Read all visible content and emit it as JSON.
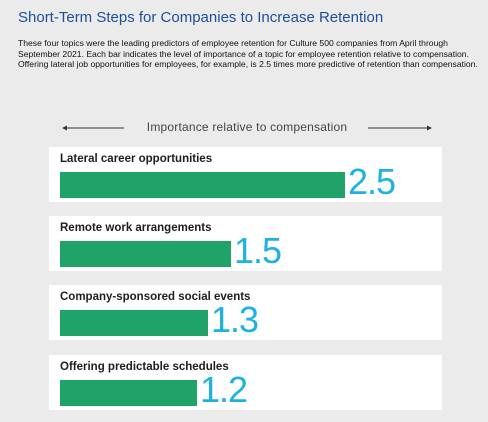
{
  "title": "Short-Term Steps for Companies to Increase Retention",
  "description": "These four topics were the leading predictors of employee retention for Culture 500 companies from April through September 2021. Each bar indicates the level of importance of a topic for employee retention relative to compensation. Offering lateral job opportunities for employees, for example, is 2.5 times more predictive of retention than compensation.",
  "colors": {
    "title": "#1b4f9c",
    "bar": "#1fa369",
    "value": "#1cb2e2",
    "background": "#ebebeb"
  },
  "chart_data": {
    "type": "bar",
    "orientation": "horizontal",
    "title": "Short-Term Steps for Companies to Increase Retention",
    "axis_label": "Importance relative to compensation",
    "categories": [
      "Lateral career opportunities",
      "Remote work arrangements",
      "Company-sponsored social events",
      "Offering predictable schedules"
    ],
    "values": [
      2.5,
      1.5,
      1.3,
      1.2
    ],
    "value_labels": [
      "2.5",
      "1.5",
      "1.3",
      "1.2"
    ],
    "xlim": [
      0,
      3
    ],
    "grid": false,
    "legend": false
  }
}
